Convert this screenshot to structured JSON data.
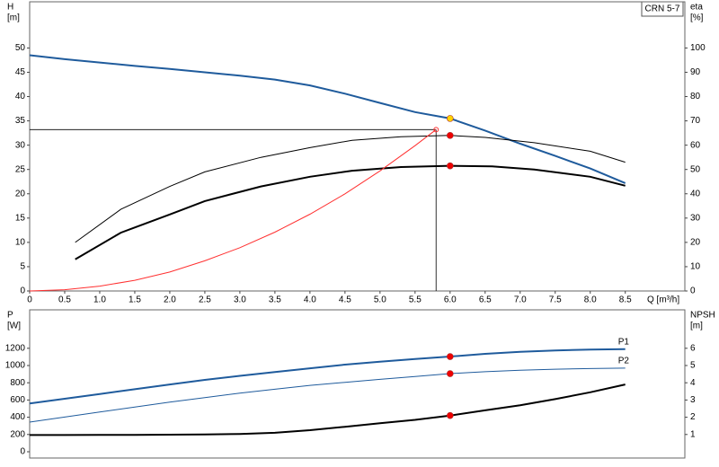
{
  "chart_data": [
    {
      "type": "line",
      "model_label": "CRN 5-7",
      "y_label": "H",
      "y_unit": "[m]",
      "y2_label": "eta",
      "y2_unit": "[%]",
      "x_label": "Q [m³/h]",
      "xlim": [
        0,
        9.35
      ],
      "ylim": [
        0,
        59.5
      ],
      "y2lim": [
        0,
        119
      ],
      "xticks": [
        0,
        0.5,
        {
          "value": 1,
          "label": "1.0"
        },
        1.5,
        {
          "value": 2,
          "label": "2.0"
        },
        2.5,
        {
          "value": 3,
          "label": "3.0"
        },
        3.5,
        {
          "value": 4,
          "label": "4.0"
        },
        4.5,
        {
          "value": 5,
          "label": "5.0"
        },
        5.5,
        {
          "value": 6,
          "label": "6.0"
        },
        6.5,
        {
          "value": 7,
          "label": "7.0"
        },
        7.5,
        {
          "value": 8,
          "label": "8.0"
        },
        8.5
      ],
      "yticks": [
        0,
        5,
        10,
        15,
        20,
        25,
        30,
        35,
        40,
        45,
        50
      ],
      "y2ticks": [
        0,
        10,
        20,
        30,
        40,
        50,
        60,
        70,
        80,
        90,
        100
      ],
      "grid": false,
      "series": [
        {
          "color": "#1f5b9c",
          "width": 2,
          "x": [
            0,
            0.5,
            1,
            1.5,
            2,
            2.5,
            3,
            3.5,
            4,
            4.5,
            5,
            5.5,
            6,
            6.5,
            7,
            7.5,
            8,
            8.5
          ],
          "values": [
            48.5,
            47.7,
            47,
            46.3,
            45.7,
            45,
            44.3,
            43.5,
            42.3,
            40.6,
            38.7,
            36.8,
            35.5,
            33,
            30.3,
            27.8,
            25.2,
            22.2
          ]
        },
        {
          "color": "#000000",
          "width": 1,
          "axis": "y2",
          "x": [
            0.65,
            1.3,
            2,
            2.5,
            3.3,
            4,
            4.6,
            5.3,
            6,
            6.5,
            7.2,
            8,
            8.5
          ],
          "values": [
            20,
            33.6,
            43,
            49,
            55,
            59,
            62,
            63.5,
            64,
            63.2,
            61,
            57.5,
            53
          ]
        },
        {
          "color": "#000000",
          "width": 2,
          "axis": "y2",
          "x": [
            0.65,
            1.3,
            2,
            2.5,
            3.3,
            4,
            4.6,
            5.3,
            6,
            6.6,
            7.2,
            8,
            8.5
          ],
          "values": [
            13,
            24,
            31.5,
            37,
            43,
            47,
            49.5,
            51,
            51.5,
            51.3,
            50,
            47,
            43.3
          ]
        },
        {
          "color": "#ff3030",
          "width": 1,
          "x": [
            0,
            0.5,
            1,
            1.5,
            2,
            2.5,
            3,
            3.5,
            4,
            4.5,
            5,
            5.5,
            5.8
          ],
          "values": [
            0,
            0.25,
            1,
            2.2,
            3.9,
            6.2,
            8.9,
            12.1,
            15.8,
            20,
            24.7,
            29.9,
            33.2
          ]
        }
      ],
      "duty_point": {
        "x": 5.8,
        "y": 33.2
      },
      "points": [
        {
          "x": 6,
          "y": 35.5,
          "color": "#ffd400"
        },
        {
          "x": 6,
          "y": 64,
          "color": "#ee0000",
          "axis": "y2"
        },
        {
          "x": 6,
          "y": 51.5,
          "color": "#ee0000",
          "axis": "y2"
        }
      ]
    },
    {
      "type": "line",
      "y_label": "P",
      "y_unit": "[W]",
      "y2_label": "NPSH",
      "y2_unit": "[m]",
      "xlim": [
        0,
        9.35
      ],
      "ylim": [
        -73,
        1646
      ],
      "y2lim": [
        -0.365,
        8.23
      ],
      "yticks": [
        0,
        200,
        400,
        600,
        800,
        1000,
        1200
      ],
      "y2ticks": [
        1,
        2,
        3,
        4,
        5,
        6
      ],
      "grid": false,
      "series": [
        {
          "name": "P1",
          "color": "#1f5b9c",
          "width": 2,
          "x": [
            0,
            0.5,
            1,
            1.5,
            2,
            2.5,
            3,
            3.5,
            4,
            4.5,
            5,
            5.5,
            6,
            6.5,
            7,
            7.5,
            8,
            8.5
          ],
          "values": [
            560,
            615,
            670,
            725,
            780,
            833,
            880,
            925,
            968,
            1010,
            1045,
            1075,
            1104,
            1135,
            1158,
            1175,
            1185,
            1190
          ]
        },
        {
          "name": "P2",
          "color": "#1f5b9c",
          "width": 1,
          "x": [
            0,
            0.5,
            1,
            1.5,
            2,
            2.5,
            3,
            3.5,
            4,
            4.5,
            5,
            5.5,
            6,
            6.5,
            7,
            7.5,
            8,
            8.5
          ],
          "values": [
            344,
            402,
            460,
            518,
            575,
            628,
            680,
            725,
            770,
            805,
            840,
            873,
            906,
            928,
            945,
            957,
            965,
            970
          ]
        },
        {
          "color": "#000000",
          "width": 2,
          "axis": "y2",
          "x": [
            0,
            0.5,
            1,
            1.5,
            2,
            2.5,
            3,
            3.5,
            4,
            4.5,
            5,
            5.5,
            6,
            6.5,
            7,
            7.5,
            8,
            8.5
          ],
          "values": [
            0.97,
            0.97,
            0.98,
            0.98,
            0.99,
            1,
            1.03,
            1.1,
            1.25,
            1.45,
            1.65,
            1.85,
            2.1,
            2.4,
            2.7,
            3.05,
            3.45,
            3.9
          ]
        }
      ],
      "points": [
        {
          "x": 6,
          "y": 1104,
          "color": "#ee0000"
        },
        {
          "x": 6,
          "y": 906,
          "color": "#ee0000"
        },
        {
          "x": 6,
          "y": 2.1,
          "color": "#ee0000",
          "axis": "y2"
        }
      ]
    }
  ]
}
